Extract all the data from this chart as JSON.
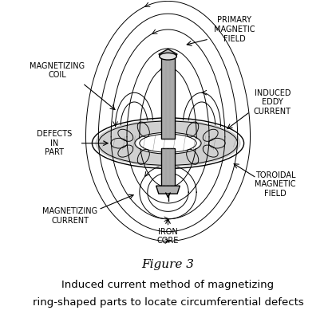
{
  "title": "Figure 3",
  "caption_line1": "Induced current method of magnetizing",
  "caption_line2": "ring-shaped parts to locate circumferential defects",
  "bg_color": "#ffffff",
  "line_color": "#000000",
  "labels": {
    "primary_magnetic_field": "PRIMARY\nMAGNETIC\nFIELD",
    "magnetizing_coil": "MAGNETIZING\nCOIL",
    "induced_eddy_current": "INDUCED\nEDDY\nCURRENT",
    "defects_in_part": "DEFECTS\nIN\nPART",
    "toroidal_magnetic_field": "TOROIDAL\nMAGNETIC\nFIELD",
    "magnetizing_current": "MAGNETIZING\nCURRENT",
    "iron_core": "IRON\nCORE"
  },
  "label_fontsize": 7,
  "title_fontsize": 11,
  "caption_fontsize": 9.5
}
